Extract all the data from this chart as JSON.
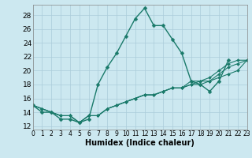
{
  "x": [
    0,
    1,
    2,
    3,
    4,
    5,
    6,
    7,
    8,
    9,
    10,
    11,
    12,
    13,
    14,
    15,
    16,
    17,
    18,
    19,
    20,
    21,
    22,
    23
  ],
  "main_line": [
    15,
    14,
    14,
    13,
    13,
    12.5,
    13,
    18,
    20.5,
    22.5,
    25,
    27.5,
    29,
    26.5,
    26.5,
    24.5,
    22.5,
    18.5,
    18,
    17,
    18.5,
    21.5,
    null,
    null
  ],
  "line2": [
    15,
    14.5,
    14,
    13.5,
    13.5,
    12.5,
    13.5,
    13.5,
    14.5,
    15,
    15.5,
    16,
    16.5,
    16.5,
    17,
    17.5,
    17.5,
    18,
    18,
    18.5,
    19,
    19.5,
    20,
    21.5
  ],
  "line3": [
    15,
    14.5,
    14,
    13.5,
    13.5,
    12.5,
    13.5,
    13.5,
    14.5,
    15,
    15.5,
    16,
    16.5,
    16.5,
    17,
    17.5,
    17.5,
    18,
    18.5,
    18.5,
    19.5,
    20.5,
    21,
    21.5
  ],
  "line4": [
    15,
    14.5,
    14,
    13.5,
    13.5,
    12.5,
    13.5,
    13.5,
    14.5,
    15,
    15.5,
    16,
    16.5,
    16.5,
    17,
    17.5,
    17.5,
    18.5,
    18.5,
    19,
    20,
    21,
    21.5,
    21.5
  ],
  "line_color": "#1a7a6a",
  "bg_color": "#cce8f0",
  "grid_color": "#aaccda",
  "xlabel": "Humidex (Indice chaleur)",
  "xlim": [
    0,
    23
  ],
  "ylim": [
    11.5,
    29.5
  ],
  "yticks": [
    12,
    14,
    16,
    18,
    20,
    22,
    24,
    26,
    28
  ],
  "xticks": [
    0,
    1,
    2,
    3,
    4,
    5,
    6,
    7,
    8,
    9,
    10,
    11,
    12,
    13,
    14,
    15,
    16,
    17,
    18,
    19,
    20,
    21,
    22,
    23
  ],
  "marker": "D",
  "markersize_main": 2.5,
  "markersize_other": 2.0,
  "linewidth_main": 1.0,
  "linewidth_other": 0.8
}
